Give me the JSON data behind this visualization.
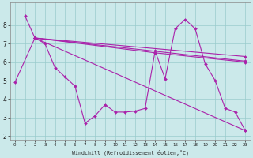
{
  "xlabel": "Windchill (Refroidissement éolien,°C)",
  "bg_color": "#cbe9ea",
  "line_color": "#aa22aa",
  "grid_color": "#99cccc",
  "xlim": [
    -0.5,
    23.5
  ],
  "ylim": [
    1.8,
    9.2
  ],
  "yticks": [
    2,
    3,
    4,
    5,
    6,
    7,
    8
  ],
  "xticks": [
    0,
    1,
    2,
    3,
    4,
    5,
    6,
    7,
    8,
    9,
    10,
    11,
    12,
    13,
    14,
    15,
    16,
    17,
    18,
    19,
    20,
    21,
    22,
    23
  ],
  "series": [
    {
      "x": [
        1,
        2,
        3,
        4,
        5,
        6,
        7,
        8,
        9,
        10,
        11,
        12,
        13,
        14,
        15,
        16,
        17,
        18,
        19,
        20,
        21,
        22,
        23
      ],
      "y": [
        8.5,
        7.3,
        7.0,
        5.7,
        5.2,
        4.7,
        2.7,
        3.1,
        3.7,
        3.3,
        3.3,
        3.35,
        3.5,
        6.6,
        5.1,
        7.8,
        8.3,
        7.8,
        5.9,
        5.0,
        3.5,
        3.3,
        2.3
      ]
    },
    {
      "x": [
        0,
        2,
        23
      ],
      "y": [
        4.9,
        7.3,
        2.3
      ]
    },
    {
      "x": [
        2,
        23
      ],
      "y": [
        7.3,
        6.05
      ]
    },
    {
      "x": [
        2,
        23
      ],
      "y": [
        7.3,
        6.3
      ]
    },
    {
      "x": [
        2,
        14,
        23
      ],
      "y": [
        7.3,
        6.5,
        6.0
      ]
    }
  ]
}
